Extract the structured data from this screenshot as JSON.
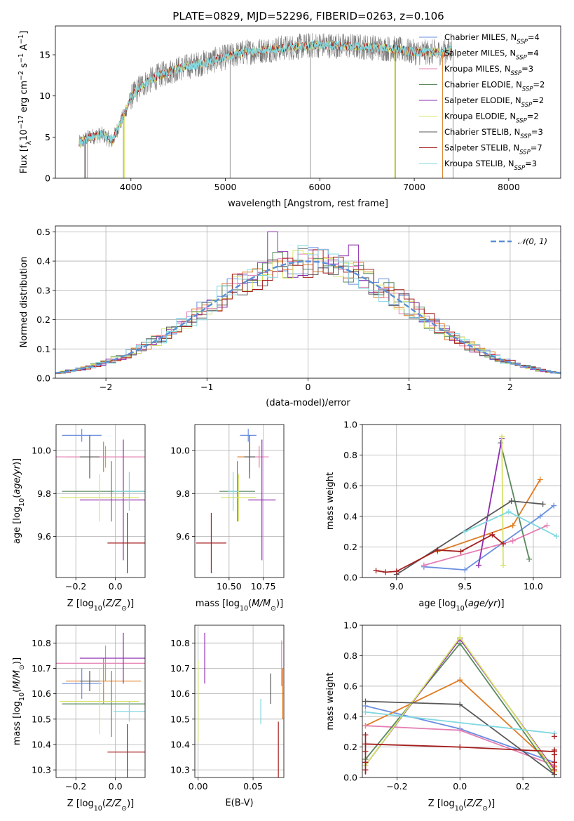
{
  "title": "PLATE=0829, MJD=52296, FIBERID=0263, z=0.106",
  "colors": {
    "Chabrier MILES": "#6a8fe0",
    "Salpeter MILES": "#e07b22",
    "Kroupa MILES": "#e57fb4",
    "Chabrier ELODIE": "#5a8a5f",
    "Salpeter ELODIE": "#8e2eb0",
    "Kroupa ELODIE": "#d7e36a",
    "Chabrier STELIB": "#585858",
    "Salpeter STELIB": "#a61f1f",
    "Kroupa STELIB": "#80d8e0",
    "gauss": "#5b8fd6",
    "spectrum_gray": "#7a7a7a"
  },
  "legend1": [
    {
      "name": "Chabrier MILES, N",
      "sub": "SSP",
      "tail": "=4"
    },
    {
      "name": "Salpeter MILES, N",
      "sub": "SSP",
      "tail": "=4"
    },
    {
      "name": "Kroupa MILES, N",
      "sub": "SSP",
      "tail": "=3"
    },
    {
      "name": "Chabrier ELODIE, N",
      "sub": "SSP",
      "tail": "=2"
    },
    {
      "name": "Salpeter ELODIE, N",
      "sub": "SSP",
      "tail": "=2"
    },
    {
      "name": "Kroupa ELODIE, N",
      "sub": "SSP",
      "tail": "=2"
    },
    {
      "name": "Chabrier STELIB, N",
      "sub": "SSP",
      "tail": "=3"
    },
    {
      "name": "Salpeter STELIB, N",
      "sub": "SSP",
      "tail": "=7"
    },
    {
      "name": "Kroupa STELIB, N",
      "sub": "SSP",
      "tail": "=3"
    }
  ],
  "chart_data": [
    {
      "type": "line",
      "panel": "spectrum",
      "xlabel": "wavelength [Angstrom, rest frame]",
      "ylabel": "Flux [fλ10⁻¹⁷ erg cm⁻² s⁻¹ A⁻¹]",
      "xlim": [
        3200,
        8550
      ],
      "ylim": [
        0,
        18.5
      ],
      "xticks": [
        4000,
        5000,
        6000,
        7000,
        8000
      ],
      "yticks": [
        0,
        5,
        10,
        15
      ],
      "continuum_anchors": {
        "x": [
          3450,
          3550,
          3700,
          3800,
          3900,
          4000,
          4100,
          4300,
          4500,
          4800,
          5200,
          5600,
          6000,
          6400,
          6800,
          7000,
          7300,
          7400
        ],
        "y": [
          4.2,
          5.0,
          5.3,
          4.5,
          7.0,
          9.8,
          11.2,
          12.5,
          13.3,
          14.1,
          15.3,
          15.8,
          16.2,
          16.0,
          15.7,
          15.3,
          15.3,
          15.6
        ]
      },
      "spikes": [
        {
          "x": 3510,
          "y": 0
        },
        {
          "x": 3920,
          "y": 0
        },
        {
          "x": 5050,
          "y": 0
        },
        {
          "x": 5900,
          "y": 0
        },
        {
          "x": 6800,
          "y": 0
        },
        {
          "x": 7410,
          "y": 0
        }
      ]
    },
    {
      "type": "bar",
      "panel": "residual histogram",
      "xlabel": "(data-model)/error",
      "ylabel": "Normed distribution",
      "xlim": [
        -2.5,
        2.5
      ],
      "ylim": [
        0,
        0.52
      ],
      "xticks": [
        -2,
        -1,
        0,
        1,
        2
      ],
      "yticks": [
        0.0,
        0.1,
        0.2,
        0.3,
        0.4,
        0.5
      ],
      "bin_width": 0.1,
      "gauss_label": "𝒩(0, 1)",
      "spiky_bins": {
        "-0.35": 0.5,
        "0.45": 0.455,
        "0.15": 0.44
      }
    },
    {
      "type": "scatter",
      "panel": "age vs Z",
      "xlabel": "Z [log10(Z/Z⊙)]",
      "ylabel": "age  [log10(age/yr)]",
      "xlim": [
        -0.3,
        0.15
      ],
      "ylim": [
        9.41,
        10.12
      ],
      "xticks": [
        -0.2,
        0.0
      ],
      "yticks": [
        9.6,
        9.8,
        10.0
      ],
      "points": [
        {
          "model": "Chabrier MILES",
          "x": -0.17,
          "y": 10.07,
          "xerr": 0.1,
          "yerr": 0.03
        },
        {
          "model": "Salpeter MILES",
          "x": -0.06,
          "y": 9.97,
          "xerr": 0.19,
          "yerr": 0.07
        },
        {
          "model": "Kroupa MILES",
          "x": -0.05,
          "y": 9.97,
          "xerr": 0.28,
          "yerr": 0.05
        },
        {
          "model": "Chabrier ELODIE",
          "x": -0.02,
          "y": 9.81,
          "xerr": 0.25,
          "yerr": 0.14
        },
        {
          "model": "Salpeter ELODIE",
          "x": 0.04,
          "y": 9.77,
          "xerr": 0.22,
          "yerr": 0.28
        },
        {
          "model": "Kroupa ELODIE",
          "x": -0.08,
          "y": 9.78,
          "xerr": 0.2,
          "yerr": 0.11
        },
        {
          "model": "Chabrier STELIB",
          "x": -0.13,
          "y": 9.97,
          "xerr": 0.05,
          "yerr": 0.1
        },
        {
          "model": "Salpeter STELIB",
          "x": 0.06,
          "y": 9.57,
          "xerr": 0.1,
          "yerr": 0.14
        },
        {
          "model": "Kroupa STELIB",
          "x": 0.07,
          "y": 9.81,
          "xerr": 0.08,
          "yerr": 0.09
        }
      ]
    },
    {
      "type": "scatter",
      "panel": "age vs mass",
      "xlabel": "mass [log10(M/M⊙)]",
      "ylabel": "",
      "xlim": [
        10.25,
        10.9
      ],
      "ylim": [
        9.41,
        10.12
      ],
      "xticks": [
        10.5,
        10.75
      ],
      "yticks": [
        9.6,
        9.8,
        10.0
      ],
      "points": [
        {
          "model": "Chabrier MILES",
          "x": 10.64,
          "y": 10.07,
          "xerr": 0.06,
          "yerr": 0.03
        },
        {
          "model": "Salpeter MILES",
          "x": 10.65,
          "y": 9.97,
          "xerr": 0.09,
          "yerr": 0.07
        },
        {
          "model": "Kroupa MILES",
          "x": 10.72,
          "y": 9.97,
          "xerr": 0.07,
          "yerr": 0.05
        },
        {
          "model": "Chabrier ELODIE",
          "x": 10.56,
          "y": 9.81,
          "xerr": 0.13,
          "yerr": 0.14
        },
        {
          "model": "Salpeter ELODIE",
          "x": 10.74,
          "y": 9.77,
          "xerr": 0.1,
          "yerr": 0.28
        },
        {
          "model": "Kroupa ELODIE",
          "x": 10.57,
          "y": 9.78,
          "xerr": 0.13,
          "yerr": 0.11
        },
        {
          "model": "Chabrier STELIB",
          "x": 10.65,
          "y": 9.97,
          "xerr": 0.04,
          "yerr": 0.1
        },
        {
          "model": "Salpeter STELIB",
          "x": 10.37,
          "y": 9.57,
          "xerr": 0.11,
          "yerr": 0.14
        },
        {
          "model": "Kroupa STELIB",
          "x": 10.53,
          "y": 9.81,
          "xerr": 0.04,
          "yerr": 0.09
        }
      ]
    },
    {
      "type": "line",
      "panel": "mass weight vs age",
      "xlabel": "age  [log10(age/yr)]",
      "ylabel": "mass weight",
      "xlim": [
        8.75,
        10.2
      ],
      "ylim": [
        0,
        1.0
      ],
      "xticks": [
        9.0,
        9.5,
        10.0
      ],
      "yticks": [
        0.0,
        0.2,
        0.4,
        0.6,
        0.8,
        1.0
      ],
      "series": [
        {
          "model": "Chabrier MILES",
          "x": [
            9.2,
            9.5,
            10.05,
            10.15
          ],
          "y": [
            0.07,
            0.05,
            0.4,
            0.47
          ]
        },
        {
          "model": "Salpeter MILES",
          "x": [
            9.3,
            9.85,
            10.05
          ],
          "y": [
            0.17,
            0.34,
            0.64
          ]
        },
        {
          "model": "Kroupa MILES",
          "x": [
            9.2,
            9.85,
            10.1
          ],
          "y": [
            0.08,
            0.24,
            0.34
          ]
        },
        {
          "model": "Chabrier ELODIE",
          "x": [
            9.76,
            9.97
          ],
          "y": [
            0.88,
            0.12
          ]
        },
        {
          "model": "Salpeter ELODIE",
          "x": [
            9.6,
            9.77
          ],
          "y": [
            0.08,
            0.91
          ]
        },
        {
          "model": "Kroupa ELODIE",
          "x": [
            9.77,
            9.78
          ],
          "y": [
            0.92,
            0.08
          ]
        },
        {
          "model": "Chabrier STELIB",
          "x": [
            9.0,
            9.84,
            10.07
          ],
          "y": [
            0.02,
            0.5,
            0.48
          ]
        },
        {
          "model": "Salpeter STELIB",
          "x": [
            8.85,
            8.92,
            9.0,
            9.3,
            9.47,
            9.7,
            9.78
          ],
          "y": [
            0.045,
            0.035,
            0.04,
            0.18,
            0.17,
            0.28,
            0.22
          ]
        },
        {
          "model": "Kroupa STELIB",
          "x": [
            9.5,
            9.82,
            10.17
          ],
          "y": [
            0.3,
            0.43,
            0.27
          ]
        }
      ]
    },
    {
      "type": "scatter",
      "panel": "mass vs Z",
      "xlabel": "Z [log10(Z/Z⊙)]",
      "ylabel": "mass [log10(M/M⊙)]",
      "xlim": [
        -0.3,
        0.15
      ],
      "ylim": [
        10.27,
        10.87
      ],
      "xticks": [
        -0.2,
        0.0
      ],
      "yticks": [
        10.3,
        10.4,
        10.5,
        10.6,
        10.7,
        10.8
      ],
      "points": [
        {
          "model": "Chabrier MILES",
          "x": -0.17,
          "y": 10.64,
          "xerr": 0.1,
          "yerr": 0.06
        },
        {
          "model": "Salpeter MILES",
          "x": -0.06,
          "y": 10.65,
          "xerr": 0.19,
          "yerr": 0.09
        },
        {
          "model": "Kroupa MILES",
          "x": -0.05,
          "y": 10.72,
          "xerr": 0.28,
          "yerr": 0.07
        },
        {
          "model": "Chabrier ELODIE",
          "x": -0.02,
          "y": 10.56,
          "xerr": 0.25,
          "yerr": 0.13
        },
        {
          "model": "Salpeter ELODIE",
          "x": 0.04,
          "y": 10.74,
          "xerr": 0.22,
          "yerr": 0.1
        },
        {
          "model": "Kroupa ELODIE",
          "x": -0.08,
          "y": 10.57,
          "xerr": 0.2,
          "yerr": 0.13
        },
        {
          "model": "Chabrier STELIB",
          "x": -0.13,
          "y": 10.65,
          "xerr": 0.05,
          "yerr": 0.04
        },
        {
          "model": "Salpeter STELIB",
          "x": 0.06,
          "y": 10.37,
          "xerr": 0.1,
          "yerr": 0.11
        },
        {
          "model": "Kroupa STELIB",
          "x": 0.07,
          "y": 10.53,
          "xerr": 0.08,
          "yerr": 0.04
        }
      ]
    },
    {
      "type": "scatter",
      "panel": "mass vs E(B-V)",
      "xlabel": "E(B-V)",
      "ylabel": "",
      "xlim": [
        -0.003,
        0.078
      ],
      "ylim": [
        10.27,
        10.87
      ],
      "xticks": [
        0.0,
        0.05
      ],
      "yticks": [
        10.3,
        10.4,
        10.5,
        10.6,
        10.7,
        10.8
      ],
      "points": [
        {
          "model": "Kroupa ELODIE",
          "x": 0.0,
          "y": 10.57,
          "yerr": 0.16
        },
        {
          "model": "Salpeter ELODIE",
          "x": 0.006,
          "y": 10.74,
          "yerr": 0.1
        },
        {
          "model": "Kroupa STELIB",
          "x": 0.057,
          "y": 10.53,
          "yerr": 0.05
        },
        {
          "model": "Chabrier STELIB",
          "x": 0.066,
          "y": 10.62,
          "yerr": 0.06
        },
        {
          "model": "Salpeter STELIB",
          "x": 0.073,
          "y": 10.37,
          "yerr": 0.12
        },
        {
          "model": "Kroupa MILES",
          "x": 0.076,
          "y": 10.72,
          "yerr": 0.09
        },
        {
          "model": "Salpeter MILES",
          "x": 0.077,
          "y": 10.6,
          "yerr": 0.1
        }
      ]
    },
    {
      "type": "line",
      "panel": "mass weight vs Z",
      "xlabel": "Z [log10(Z/Z⊙)]",
      "ylabel": "mass weight",
      "xlim": [
        -0.31,
        0.32
      ],
      "ylim": [
        0,
        1.0
      ],
      "xticks": [
        -0.2,
        0.0,
        0.2
      ],
      "yticks": [
        0.0,
        0.2,
        0.4,
        0.6,
        0.8,
        1.0
      ],
      "series": [
        {
          "model": "Chabrier MILES",
          "x": [
            -0.3,
            0.0,
            0.3
          ],
          "y": [
            0.47,
            0.32,
            0.1
          ]
        },
        {
          "model": "Salpeter MILES",
          "x": [
            -0.3,
            0.0,
            0.3
          ],
          "y": [
            0.34,
            0.64,
            0.07
          ]
        },
        {
          "model": "Kroupa MILES",
          "x": [
            -0.3,
            0.0,
            0.3
          ],
          "y": [
            0.34,
            0.31,
            0.08
          ]
        },
        {
          "model": "Chabrier ELODIE",
          "x": [
            -0.3,
            0.0,
            0.3
          ],
          "y": [
            0.12,
            0.88,
            0.02
          ]
        },
        {
          "model": "Salpeter ELODIE",
          "x": [
            -0.3,
            0.0,
            0.3
          ],
          "y": [
            0.08,
            0.91,
            0.05
          ]
        },
        {
          "model": "Kroupa ELODIE",
          "x": [
            -0.3,
            0.0,
            0.3
          ],
          "y": [
            0.08,
            0.92,
            0.04
          ]
        },
        {
          "model": "Chabrier STELIB",
          "x": [
            -0.3,
            0.0,
            0.3
          ],
          "y": [
            0.5,
            0.48,
            0.02
          ]
        },
        {
          "model": "Salpeter STELIB",
          "x": [
            -0.3,
            0.0,
            0.3
          ],
          "y": [
            0.22,
            0.2,
            0.17
          ]
        },
        {
          "model": "Kroupa STELIB",
          "x": [
            -0.3,
            0.3
          ],
          "y": [
            0.43,
            0.29
          ]
        }
      ],
      "extra_markers": {
        "x": -0.3,
        "y": [
          0.05,
          0.1,
          0.17,
          0.28
        ],
        "x2": 0.3,
        "y2": [
          0.05,
          0.1,
          0.15,
          0.18,
          0.27
        ]
      }
    }
  ]
}
